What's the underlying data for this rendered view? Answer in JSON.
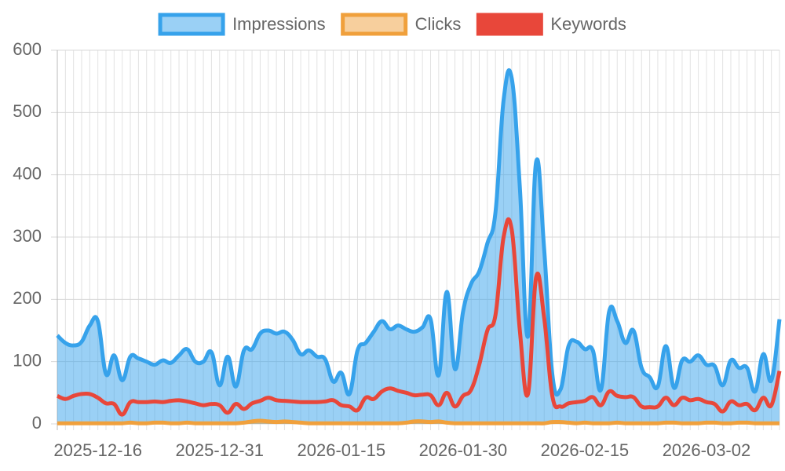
{
  "chart_data": {
    "type": "line",
    "categories": [
      null,
      null,
      null,
      null,
      null,
      "2025-12-16",
      null,
      null,
      null,
      null,
      null,
      null,
      null,
      null,
      null,
      null,
      null,
      null,
      null,
      null,
      "2025-12-31",
      null,
      null,
      null,
      null,
      null,
      null,
      null,
      null,
      null,
      null,
      null,
      null,
      null,
      null,
      "2026-01-15",
      null,
      null,
      null,
      null,
      null,
      null,
      null,
      null,
      null,
      null,
      null,
      null,
      null,
      null,
      "2026-01-30",
      null,
      null,
      null,
      null,
      null,
      null,
      null,
      null,
      null,
      null,
      null,
      null,
      null,
      null,
      "2026-02-15",
      null,
      null,
      null,
      null,
      null,
      null,
      null,
      null,
      null,
      null,
      null,
      null,
      null,
      null,
      "2026-03-02",
      null,
      null,
      null,
      null,
      null,
      null,
      null,
      null,
      null
    ],
    "series": [
      {
        "name": "Impressions",
        "color": "#36a2eb",
        "fill": true,
        "values": [
          142,
          130,
          126,
          132,
          158,
          165,
          80,
          110,
          70,
          108,
          105,
          100,
          95,
          102,
          98,
          110,
          120,
          100,
          100,
          115,
          62,
          108,
          60,
          118,
          120,
          145,
          150,
          145,
          148,
          135,
          112,
          118,
          108,
          104,
          68,
          82,
          48,
          118,
          130,
          148,
          165,
          152,
          158,
          152,
          148,
          155,
          168,
          78,
          212,
          88,
          180,
          225,
          245,
          290,
          340,
          520,
          555,
          380,
          140,
          420,
          280,
          80,
          55,
          125,
          132,
          120,
          118,
          55,
          180,
          165,
          130,
          150,
          90,
          75,
          60,
          125,
          58,
          102,
          100,
          110,
          95,
          93,
          62,
          102,
          90,
          90,
          52,
          112,
          70,
          168
        ]
      },
      {
        "name": "Clicks",
        "color": "#f0a03c",
        "fill": true,
        "values": [
          1,
          1,
          1,
          1,
          1,
          1,
          1,
          1,
          1,
          2,
          1,
          1,
          2,
          2,
          1,
          1,
          2,
          1,
          1,
          1,
          1,
          1,
          1,
          2,
          4,
          5,
          4,
          3,
          4,
          3,
          2,
          1,
          1,
          1,
          1,
          1,
          1,
          1,
          1,
          1,
          1,
          1,
          1,
          2,
          4,
          4,
          3,
          4,
          2,
          1,
          1,
          1,
          1,
          1,
          1,
          1,
          1,
          1,
          1,
          1,
          1,
          3,
          3,
          2,
          1,
          2,
          1,
          1,
          1,
          2,
          1,
          1,
          1,
          1,
          1,
          2,
          2,
          1,
          1,
          1,
          2,
          2,
          1,
          1,
          2,
          2,
          1,
          1,
          1,
          1
        ]
      },
      {
        "name": "Keywords",
        "color": "#e8473a",
        "fill": false,
        "values": [
          45,
          40,
          45,
          48,
          48,
          42,
          33,
          32,
          15,
          35,
          35,
          35,
          36,
          35,
          37,
          38,
          36,
          33,
          30,
          32,
          30,
          18,
          32,
          24,
          33,
          37,
          42,
          38,
          37,
          36,
          35,
          35,
          35,
          36,
          38,
          30,
          28,
          22,
          42,
          40,
          52,
          57,
          53,
          50,
          46,
          47,
          46,
          30,
          50,
          28,
          45,
          55,
          95,
          150,
          175,
          300,
          312,
          150,
          48,
          235,
          170,
          45,
          28,
          33,
          35,
          37,
          43,
          30,
          52,
          45,
          43,
          43,
          28,
          27,
          28,
          42,
          30,
          42,
          38,
          40,
          35,
          32,
          20,
          36,
          30,
          32,
          22,
          42,
          30,
          85
        ]
      }
    ],
    "ylim": [
      0,
      600
    ],
    "yticks": [
      0,
      100,
      200,
      300,
      400,
      500,
      600
    ],
    "grid": true,
    "legend": "top"
  }
}
